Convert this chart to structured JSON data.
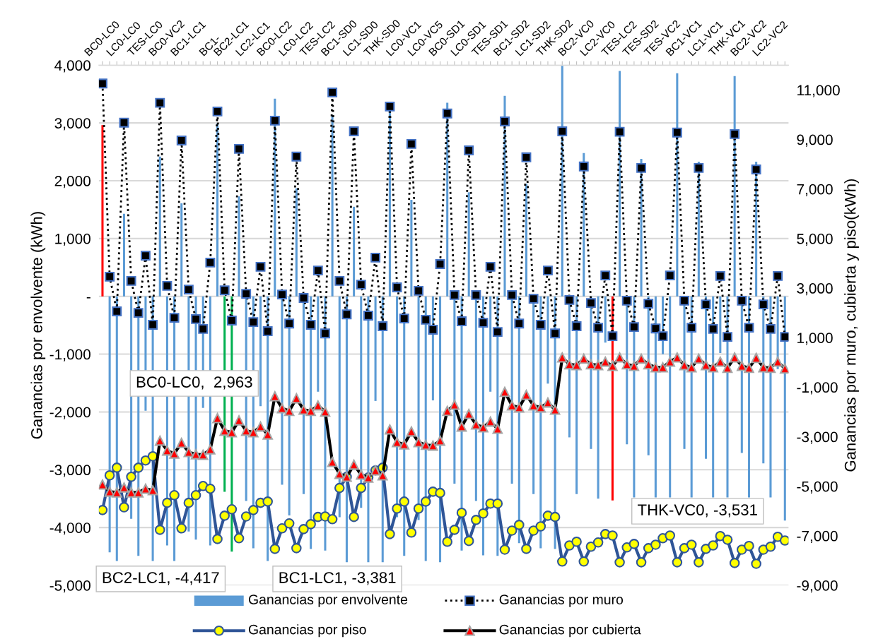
{
  "chart_data": {
    "type": "bar",
    "categories": [
      "BC0-LC0",
      null,
      null,
      "LC0-LC0",
      null,
      null,
      "TES-LC0",
      null,
      null,
      "BC0-VC2",
      null,
      null,
      "BC1-LC1",
      null,
      null,
      "BC1-",
      null,
      null,
      "BC2-LC1",
      null,
      null,
      "LC2-LC1",
      null,
      null,
      "BC0-LC2",
      null,
      null,
      "LC0-LC2",
      null,
      null,
      "TES-LC2",
      null,
      null,
      "BC1-SD0",
      null,
      null,
      "LC1-SD0",
      null,
      null,
      "THK-SD0",
      null,
      null,
      "LC0-VC1",
      null,
      null,
      "LC0-VC5",
      null,
      null,
      "BC0-SD1",
      null,
      null,
      "LC0-SD1",
      null,
      null,
      "TES-SD1",
      null,
      null,
      "BC1-SD2",
      null,
      null,
      "LC1-SD2",
      null,
      null,
      "THK-SD2",
      null,
      null,
      "BC2-VC0",
      null,
      null,
      "LC2-VC0",
      null,
      null,
      "TES-LC2",
      null,
      null,
      "TES-SD2",
      null,
      null,
      "TES-VC2",
      null,
      null,
      "BC1-VC1",
      null,
      null,
      "LC1-VC1",
      null,
      null,
      "THK-VC1",
      null,
      null,
      "BC2-VC2",
      null,
      null,
      "LC2-VC2",
      null,
      null
    ],
    "series": [
      {
        "name": "Ganancias por envolvente",
        "color": "#5b9bd5",
        "colors": [
          "#ff0000",
          "#5b9bd5",
          "#5b9bd5",
          "#5b9bd5",
          "#5b9bd5",
          "#5b9bd5",
          "#5b9bd5",
          "#5b9bd5",
          "#5b9bd5",
          "#5b9bd5",
          "#5b9bd5",
          "#5b9bd5",
          "#5b9bd5",
          "#5b9bd5",
          "#5b9bd5",
          "#5b9bd5",
          "#5b9bd5",
          "#00b050",
          "#00b050",
          "#5b9bd5",
          "#5b9bd5",
          "#5b9bd5",
          "#5b9bd5",
          "#5b9bd5",
          "#5b9bd5",
          "#5b9bd5",
          "#5b9bd5",
          "#5b9bd5",
          "#5b9bd5",
          "#5b9bd5",
          "#5b9bd5",
          "#5b9bd5",
          "#5b9bd5",
          "#5b9bd5",
          "#5b9bd5",
          "#5b9bd5",
          "#5b9bd5",
          "#5b9bd5",
          "#5b9bd5",
          "#5b9bd5",
          "#5b9bd5",
          "#5b9bd5",
          "#5b9bd5",
          "#5b9bd5",
          "#5b9bd5",
          "#5b9bd5",
          "#5b9bd5",
          "#5b9bd5",
          "#5b9bd5",
          "#5b9bd5",
          "#5b9bd5",
          "#5b9bd5",
          "#5b9bd5",
          "#5b9bd5",
          "#5b9bd5",
          "#5b9bd5",
          "#5b9bd5",
          "#5b9bd5",
          "#5b9bd5",
          "#5b9bd5",
          "#5b9bd5",
          "#5b9bd5",
          "#5b9bd5",
          "#5b9bd5",
          "#5b9bd5",
          "#5b9bd5",
          "#5b9bd5",
          "#5b9bd5",
          "#5b9bd5",
          "#5b9bd5",
          "#5b9bd5",
          "#ff0000",
          "#5b9bd5",
          "#5b9bd5",
          "#5b9bd5",
          "#5b9bd5",
          "#5b9bd5",
          "#5b9bd5",
          "#5b9bd5",
          "#5b9bd5",
          "#5b9bd5",
          "#5b9bd5",
          "#5b9bd5",
          "#5b9bd5",
          "#5b9bd5",
          "#5b9bd5",
          "#5b9bd5",
          "#5b9bd5",
          "#5b9bd5",
          "#5b9bd5",
          "#5b9bd5",
          "#5b9bd5",
          "#5b9bd5",
          "#5b9bd5",
          "#5b9bd5",
          "#5b9bd5"
        ],
        "values": [
          2963,
          -4430,
          -4580,
          1430,
          -3850,
          -4490,
          -1980,
          -4580,
          2420,
          -4310,
          -4580,
          1610,
          -4070,
          -4210,
          -1930,
          -4310,
          2990,
          -3381,
          -4417,
          1730,
          -3540,
          -4360,
          -1900,
          -4580,
          3420,
          -3260,
          -3790,
          1870,
          -3420,
          -4370,
          -1650,
          -4400,
          3140,
          -3820,
          -4600,
          1550,
          -3660,
          -4600,
          -1810,
          -4600,
          3240,
          -3820,
          -4490,
          1670,
          -3870,
          -4580,
          -1800,
          -4600,
          3350,
          -3240,
          -4400,
          1800,
          -3540,
          -4480,
          -1650,
          -4490,
          3470,
          -3240,
          -4270,
          1950,
          -3420,
          -4360,
          -1510,
          -4370,
          3990,
          -2440,
          -3420,
          2480,
          -2640,
          -3500,
          -800,
          -3531,
          3900,
          -2560,
          -3480,
          2380,
          -2750,
          -3480,
          -1000,
          -3480,
          3860,
          -2640,
          -3480,
          2330,
          -2810,
          -3480,
          -980,
          -3480,
          3810,
          -2710,
          -3480,
          2330,
          -2890,
          -3480,
          -1260,
          -3880
        ]
      },
      {
        "name": "Ganancias por muro",
        "type": "line",
        "axis": "y2",
        "color": "#000000",
        "marker": "square",
        "line_style": "dotted",
        "values": [
          11260,
          3460,
          2060,
          9680,
          3290,
          2000,
          4310,
          1520,
          10480,
          3090,
          1800,
          8960,
          2940,
          1750,
          1350,
          4030,
          10130,
          2910,
          1690,
          8620,
          2770,
          1630,
          3860,
          1260,
          9760,
          2740,
          1570,
          8310,
          2600,
          1520,
          3710,
          1170,
          10900,
          3290,
          1940,
          9330,
          3140,
          1890,
          4230,
          1460,
          10330,
          3030,
          1770,
          8820,
          2890,
          1720,
          1320,
          3970,
          10050,
          2720,
          1660,
          8560,
          2720,
          1600,
          3860,
          1230,
          9730,
          2720,
          1570,
          8280,
          2570,
          1520,
          3710,
          1170,
          9330,
          2520,
          1460,
          7910,
          2400,
          1400,
          3510,
          1060,
          9310,
          2490,
          1430,
          7850,
          2370,
          1370,
          1060,
          3510,
          9280,
          2490,
          1400,
          7850,
          2340,
          1350,
          3490,
          1030,
          9220,
          2490,
          1400,
          7790,
          2340,
          1350,
          3490,
          1030
        ]
      },
      {
        "name": "Ganancias por piso",
        "type": "line",
        "axis": "y2",
        "color": "#2f5597",
        "marker": "circle",
        "line_style": "solid",
        "values": [
          -5960,
          -4560,
          -4250,
          -5850,
          -4620,
          -4250,
          -3960,
          -3790,
          -6760,
          -5670,
          -5360,
          -6700,
          -5670,
          -5360,
          -4990,
          -5100,
          -7130,
          -6190,
          -5930,
          -7100,
          -6220,
          -5960,
          -5670,
          -5620,
          -7530,
          -6700,
          -6500,
          -7500,
          -6730,
          -6530,
          -6240,
          -6220,
          -6330,
          -5070,
          -4620,
          -6240,
          -5070,
          -4650,
          -4360,
          -4250,
          -6930,
          -5900,
          -5620,
          -6870,
          -5900,
          -5620,
          -5220,
          -5270,
          -7240,
          -6760,
          -6070,
          -7210,
          -6360,
          -6100,
          -5700,
          -5700,
          -7560,
          -6790,
          -6560,
          -7530,
          -6790,
          -6620,
          -6190,
          -6240,
          -8040,
          -7390,
          -7240,
          -8040,
          -7440,
          -7270,
          -6930,
          -6990,
          -8070,
          -7470,
          -7330,
          -8070,
          -7500,
          -7360,
          -7100,
          -6990,
          -8070,
          -7500,
          -7360,
          -8070,
          -7530,
          -7390,
          -7010,
          -7160,
          -8100,
          -7560,
          -7410,
          -8130,
          -7560,
          -7440,
          -7040,
          -7190
        ]
      },
      {
        "name": "Ganancias por cubierta",
        "type": "line",
        "axis": "y2",
        "color": "#000000",
        "marker": "triangle",
        "line_style": "solid",
        "values": [
          -4930,
          -5220,
          -5250,
          -5050,
          -5250,
          -5250,
          -5100,
          -5160,
          -3160,
          -3560,
          -3680,
          -3250,
          -3620,
          -3710,
          -3730,
          -3510,
          -2250,
          -2760,
          -2820,
          -2340,
          -2760,
          -2820,
          -2590,
          -2910,
          -1370,
          -1850,
          -1960,
          -1450,
          -1910,
          -1960,
          -1740,
          -1990,
          -4020,
          -4500,
          -4620,
          -4130,
          -4530,
          -4650,
          -4360,
          -4560,
          -2710,
          -3220,
          -3310,
          -2790,
          -3220,
          -3330,
          -3360,
          -3160,
          -1960,
          -1710,
          -2590,
          -2080,
          -2510,
          -2620,
          -2390,
          -2680,
          -1190,
          -1740,
          -1820,
          -1310,
          -1740,
          -1820,
          -1620,
          -1910,
          200,
          -80,
          -110,
          150,
          -80,
          -110,
          30,
          -140,
          200,
          -80,
          -140,
          150,
          -80,
          -200,
          -200,
          30,
          200,
          -110,
          -200,
          150,
          -110,
          -200,
          30,
          -220,
          200,
          -140,
          -220,
          180,
          -200,
          -220,
          30,
          -250
        ]
      }
    ],
    "ylabel": "Ganancias por envolvente (kWh)",
    "y2label": "Ganancias por muro, cubierta y piso(kWh)",
    "ylim": [
      -5000,
      4000
    ],
    "yticks": [
      {
        "value": -5000,
        "label": "-5,000"
      },
      {
        "value": -4000,
        "label": "-4,000"
      },
      {
        "value": -3000,
        "label": "-3,000"
      },
      {
        "value": -2000,
        "label": "-2,000"
      },
      {
        "value": -1000,
        "label": "-1,000"
      },
      {
        "value": 0,
        "label": "-"
      },
      {
        "value": 1000,
        "label": "1,000"
      },
      {
        "value": 2000,
        "label": "2,000"
      },
      {
        "value": 3000,
        "label": "3,000"
      },
      {
        "value": 4000,
        "label": "4,000"
      }
    ],
    "y2lim": [
      -9000,
      12000
    ],
    "y2ticks": [
      {
        "value": -9000,
        "label": "-9,000"
      },
      {
        "value": -7000,
        "label": "-7,000"
      },
      {
        "value": -5000,
        "label": "-5,000"
      },
      {
        "value": -3000,
        "label": "-3,000"
      },
      {
        "value": -1000,
        "label": "-1,000"
      },
      {
        "value": 1000,
        "label": "1,000"
      },
      {
        "value": 3000,
        "label": "3,000"
      },
      {
        "value": 5000,
        "label": "5,000"
      },
      {
        "value": 7000,
        "label": "7,000"
      },
      {
        "value": 9000,
        "label": "9,000"
      },
      {
        "value": 11000,
        "label": "11,000"
      }
    ],
    "grid": "y",
    "legend": "bottom",
    "annotations": [
      "BC0-LC0,  2,963",
      "BC2-LC1, -4,417",
      "BC1-LC1, -3,381",
      "THK-VC0, -3,531"
    ]
  }
}
